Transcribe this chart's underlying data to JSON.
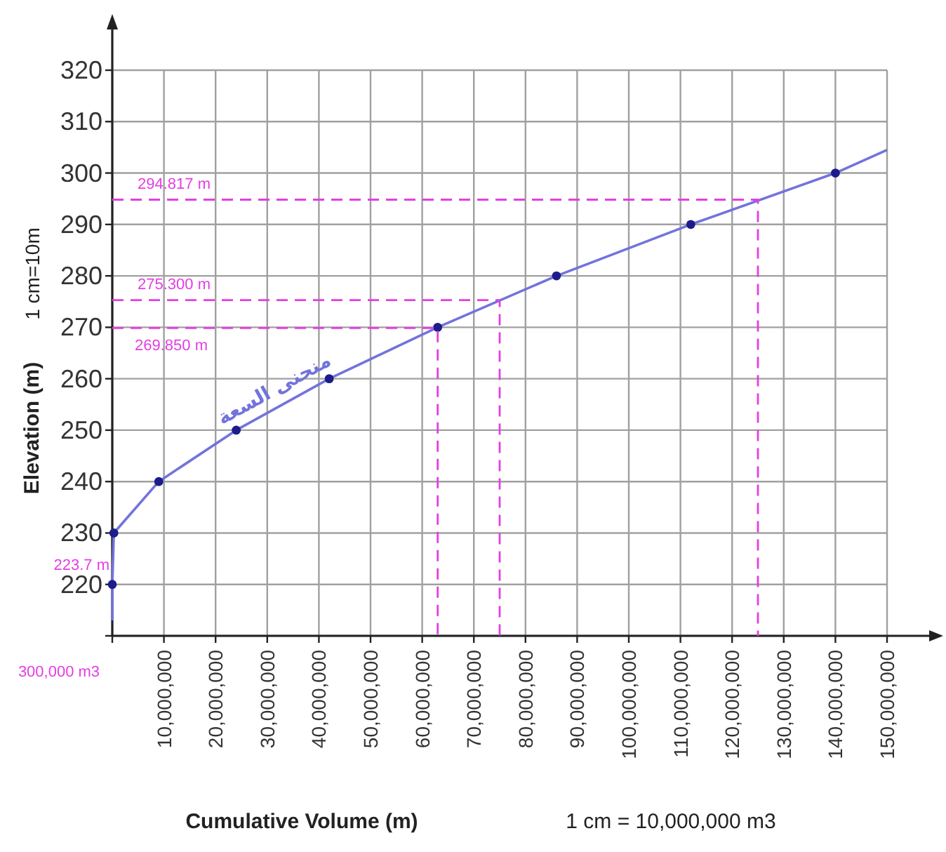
{
  "chart_data": {
    "type": "line",
    "xlabel": "Cumulative Volume (m)",
    "ylabel": "Elevation (m)",
    "annotations": [
      "1 cm=10m",
      "1 cm = 10,000,000 m3",
      "300,000 m3",
      {
        "text": "294.817 m",
        "y": 294.817
      },
      {
        "text": "275.300 m",
        "y": 275.3
      },
      {
        "text": "269.850 m",
        "y": 269.85
      },
      "223.7 m"
    ],
    "xlim": [
      0,
      150000000
    ],
    "ylim": [
      210,
      320
    ],
    "xticks": [
      {
        "value": 0,
        "label": null
      },
      {
        "value": 10000000,
        "label": "10,000,000"
      },
      {
        "value": 20000000,
        "label": "20,000,000"
      },
      {
        "value": 30000000,
        "label": "30,000,000"
      },
      {
        "value": 40000000,
        "label": "40,000,000"
      },
      {
        "value": 50000000,
        "label": "50,000,000"
      },
      {
        "value": 60000000,
        "label": "60,000,000"
      },
      {
        "value": 70000000,
        "label": "70,000,000"
      },
      {
        "value": 80000000,
        "label": "80,000,000"
      },
      {
        "value": 90000000,
        "label": "90,000,000"
      },
      {
        "value": 100000000,
        "label": "100,000,000"
      },
      {
        "value": 110000000,
        "label": "110,000,000"
      },
      {
        "value": 120000000,
        "label": "120,000,000"
      },
      {
        "value": 130000000,
        "label": "130,000,000"
      },
      {
        "value": 140000000,
        "label": "140,000,000"
      },
      {
        "value": 150000000,
        "label": "150,000,000"
      }
    ],
    "yticks": [
      {
        "value": 210,
        "label": null
      },
      220,
      230,
      240,
      250,
      260,
      270,
      280,
      290,
      300,
      310,
      320
    ],
    "grid": true,
    "series": [
      {
        "name": "منحنى السعة",
        "color": "#7373dc",
        "x": [
          0,
          0,
          300000,
          9000000,
          24000000,
          42000000,
          63000000,
          86000000,
          112000000,
          140000000,
          150000000
        ],
        "values": [
          213,
          220,
          230,
          240,
          250,
          260,
          270,
          280,
          290,
          300,
          304.5
        ]
      },
      {
        "type": "scatter",
        "color": "#1c1c8a",
        "marker": "circle",
        "x": [
          0,
          300000,
          9000000,
          24000000,
          42000000,
          63000000,
          86000000,
          112000000,
          140000000
        ],
        "values": [
          220,
          230,
          240,
          250,
          260,
          270,
          280,
          290,
          300
        ]
      },
      {
        "type": "line",
        "color": "#e43ee4",
        "line_style": "dashed",
        "x": [
          0,
          125000000,
          125000000
        ],
        "values": [
          294.817,
          294.817,
          210
        ]
      },
      {
        "type": "line",
        "color": "#e43ee4",
        "line_style": "dashed",
        "x": [
          0,
          75000000,
          75000000
        ],
        "values": [
          275.3,
          275.3,
          210
        ]
      },
      {
        "type": "line",
        "color": "#e43ee4",
        "line_style": "dashed",
        "x": [
          0,
          63000000,
          63000000
        ],
        "values": [
          269.85,
          269.85,
          210
        ]
      }
    ]
  }
}
